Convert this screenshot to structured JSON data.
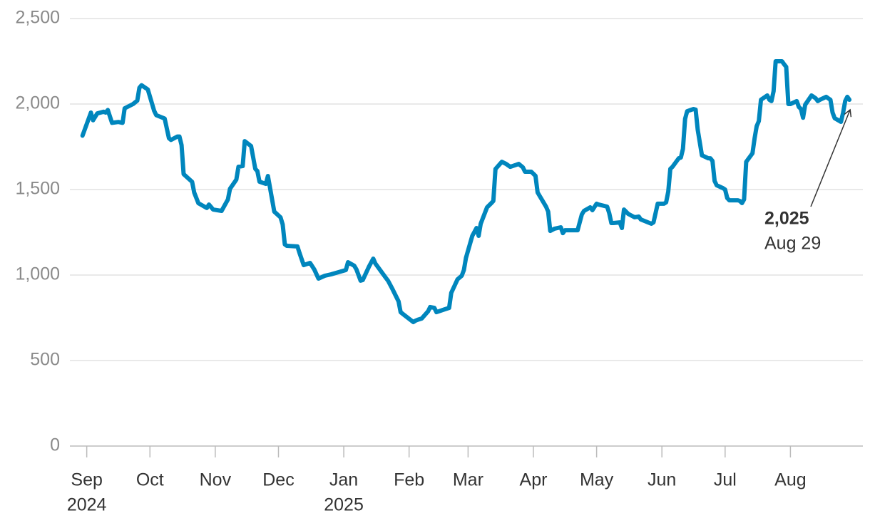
{
  "chart_data": {
    "type": "line",
    "color": "#0086bd",
    "x": [
      "2024-08-30",
      "2024-09-03",
      "2024-09-04",
      "2024-09-06",
      "2024-09-09",
      "2024-09-10",
      "2024-09-11",
      "2024-09-13",
      "2024-09-16",
      "2024-09-18",
      "2024-09-19",
      "2024-09-23",
      "2024-09-25",
      "2024-09-26",
      "2024-09-27",
      "2024-09-30",
      "2024-10-03",
      "2024-10-04",
      "2024-10-08",
      "2024-10-10",
      "2024-10-11",
      "2024-10-14",
      "2024-10-15",
      "2024-10-16",
      "2024-10-17",
      "2024-10-21",
      "2024-10-22",
      "2024-10-24",
      "2024-10-28",
      "2024-10-29",
      "2024-10-31",
      "2024-11-04",
      "2024-11-07",
      "2024-11-08",
      "2024-11-11",
      "2024-11-12",
      "2024-11-14",
      "2024-11-15",
      "2024-11-18",
      "2024-11-20",
      "2024-11-21",
      "2024-11-22",
      "2024-11-25",
      "2024-11-26",
      "2024-11-29",
      "2024-12-02",
      "2024-12-03",
      "2024-12-04",
      "2024-12-05",
      "2024-12-10",
      "2024-12-11",
      "2024-12-13",
      "2024-12-16",
      "2024-12-18",
      "2024-12-20",
      "2024-12-23",
      "2024-12-26",
      "2025-01-02",
      "2025-01-03",
      "2025-01-06",
      "2025-01-07",
      "2025-01-09",
      "2025-01-10",
      "2025-01-13",
      "2025-01-15",
      "2025-01-16",
      "2025-01-21",
      "2025-01-22",
      "2025-01-24",
      "2025-01-27",
      "2025-01-28",
      "2025-01-30",
      "2025-02-03",
      "2025-02-04",
      "2025-02-05",
      "2025-02-07",
      "2025-02-10",
      "2025-02-11",
      "2025-02-13",
      "2025-02-14",
      "2025-02-18",
      "2025-02-20",
      "2025-02-21",
      "2025-02-24",
      "2025-02-26",
      "2025-02-27",
      "2025-02-28",
      "2025-03-03",
      "2025-03-05",
      "2025-03-06",
      "2025-03-07",
      "2025-03-10",
      "2025-03-12",
      "2025-03-13",
      "2025-03-14",
      "2025-03-17",
      "2025-03-19",
      "2025-03-21",
      "2025-03-24",
      "2025-03-25",
      "2025-03-27",
      "2025-03-28",
      "2025-03-31",
      "2025-04-02",
      "2025-04-03",
      "2025-04-07",
      "2025-04-08",
      "2025-04-09",
      "2025-04-11",
      "2025-04-14",
      "2025-04-15",
      "2025-04-16",
      "2025-04-21",
      "2025-04-22",
      "2025-04-24",
      "2025-04-25",
      "2025-04-28",
      "2025-04-29",
      "2025-05-01",
      "2025-05-02",
      "2025-05-06",
      "2025-05-07",
      "2025-05-08",
      "2025-05-09",
      "2025-05-12",
      "2025-05-13",
      "2025-05-14",
      "2025-05-16",
      "2025-05-19",
      "2025-05-21",
      "2025-05-22",
      "2025-05-27",
      "2025-05-28",
      "2025-05-30",
      "2025-06-02",
      "2025-06-03",
      "2025-06-04",
      "2025-06-05",
      "2025-06-06",
      "2025-06-09",
      "2025-06-10",
      "2025-06-11",
      "2025-06-12",
      "2025-06-13",
      "2025-06-16",
      "2025-06-17",
      "2025-06-18",
      "2025-06-20",
      "2025-06-23",
      "2025-06-24",
      "2025-06-25",
      "2025-06-26",
      "2025-06-27",
      "2025-06-30",
      "2025-07-01",
      "2025-07-02",
      "2025-07-03",
      "2025-07-07",
      "2025-07-08",
      "2025-07-09",
      "2025-07-10",
      "2025-07-11",
      "2025-07-14",
      "2025-07-15",
      "2025-07-16",
      "2025-07-17",
      "2025-07-18",
      "2025-07-21",
      "2025-07-22",
      "2025-07-23",
      "2025-07-24",
      "2025-07-25",
      "2025-07-28",
      "2025-07-29",
      "2025-07-30",
      "2025-07-31",
      "2025-08-01",
      "2025-08-04",
      "2025-08-05",
      "2025-08-06",
      "2025-08-07",
      "2025-08-08",
      "2025-08-11",
      "2025-08-12",
      "2025-08-13",
      "2025-08-14",
      "2025-08-15",
      "2025-08-18",
      "2025-08-19",
      "2025-08-20",
      "2025-08-21",
      "2025-08-22",
      "2025-08-25",
      "2025-08-26",
      "2025-08-27",
      "2025-08-28",
      "2025-08-29"
    ],
    "values": [
      1815,
      1950,
      1905,
      1945,
      1955,
      1950,
      1965,
      1890,
      1895,
      1890,
      1975,
      2000,
      2020,
      2095,
      2110,
      2085,
      1960,
      1935,
      1915,
      1800,
      1790,
      1810,
      1810,
      1760,
      1590,
      1545,
      1483,
      1420,
      1392,
      1412,
      1383,
      1375,
      1442,
      1504,
      1558,
      1633,
      1637,
      1783,
      1754,
      1621,
      1608,
      1546,
      1533,
      1579,
      1371,
      1337,
      1296,
      1179,
      1171,
      1167,
      1129,
      1058,
      1071,
      1033,
      979,
      996,
      1004,
      1029,
      1075,
      1054,
      1033,
      967,
      971,
      1050,
      1096,
      1067,
      983,
      967,
      921,
      846,
      783,
      763,
      725,
      733,
      738,
      746,
      788,
      813,
      808,
      783,
      800,
      808,
      896,
      975,
      996,
      1029,
      1100,
      1229,
      1275,
      1229,
      1300,
      1396,
      1420,
      1433,
      1620,
      1662,
      1650,
      1633,
      1645,
      1650,
      1630,
      1604,
      1604,
      1580,
      1483,
      1400,
      1371,
      1258,
      1271,
      1279,
      1245,
      1262,
      1262,
      1262,
      1354,
      1375,
      1396,
      1379,
      1417,
      1412,
      1400,
      1362,
      1304,
      1304,
      1308,
      1275,
      1383,
      1358,
      1338,
      1342,
      1325,
      1300,
      1308,
      1417,
      1417,
      1425,
      1488,
      1621,
      1633,
      1683,
      1687,
      1738,
      1913,
      1958,
      1971,
      1967,
      1850,
      1700,
      1683,
      1683,
      1667,
      1550,
      1525,
      1508,
      1500,
      1450,
      1437,
      1437,
      1433,
      1421,
      1442,
      1662,
      1712,
      1800,
      1871,
      1900,
      2025,
      2050,
      2025,
      2017,
      2075,
      2250,
      2250,
      2233,
      2217,
      2000,
      2000,
      2017,
      1983,
      1971,
      1920,
      1996,
      2050,
      2042,
      2033,
      2017,
      2025,
      2042,
      2033,
      2025,
      1950,
      1917,
      1896,
      1950,
      2017,
      2042,
      2025
    ],
    "xlim": [
      "2024-08-24",
      "2025-09-01"
    ],
    "xticks": [
      {
        "value": "2024-09-01",
        "label": "Sep",
        "year": "2024"
      },
      {
        "value": "2024-10-01",
        "label": "Oct"
      },
      {
        "value": "2024-11-01",
        "label": "Nov"
      },
      {
        "value": "2024-12-01",
        "label": "Dec"
      },
      {
        "value": "2025-01-01",
        "label": "Jan",
        "year": "2025"
      },
      {
        "value": "2025-02-01",
        "label": "Feb"
      },
      {
        "value": "2025-03-01",
        "label": "Mar"
      },
      {
        "value": "2025-04-01",
        "label": "Apr"
      },
      {
        "value": "2025-05-01",
        "label": "May"
      },
      {
        "value": "2025-06-01",
        "label": "Jun"
      },
      {
        "value": "2025-07-01",
        "label": "Jul"
      },
      {
        "value": "2025-08-01",
        "label": "Aug"
      }
    ],
    "ylim": [
      0,
      2500
    ],
    "yticks": [
      0,
      500,
      {
        "value": 1000,
        "label": "1,000"
      },
      {
        "value": 1500,
        "label": "1,500"
      },
      {
        "value": 2000,
        "label": "2,000"
      },
      {
        "value": 2500,
        "label": "2,500"
      }
    ],
    "grid": true,
    "annotation": {
      "x": "2025-08-29",
      "value": 2025,
      "label": "2,025",
      "date_label": "Aug 29"
    }
  }
}
